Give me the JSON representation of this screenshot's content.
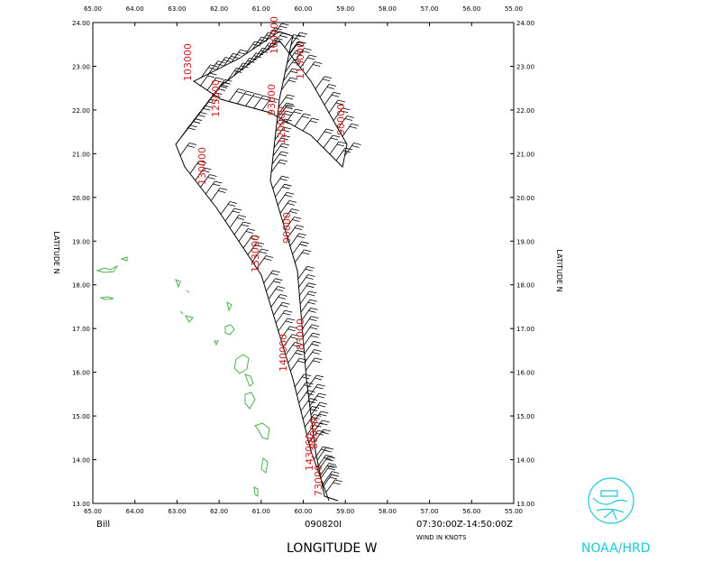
{
  "plot": {
    "xlim": [
      65,
      55
    ],
    "ylim": [
      13,
      24
    ],
    "xticks": [
      {
        "value": 65,
        "label": "65.00"
      },
      {
        "value": 64,
        "label": "64.00"
      },
      {
        "value": 63,
        "label": "63.00"
      },
      {
        "value": 62,
        "label": "62.00"
      },
      {
        "value": 61,
        "label": "61.00"
      },
      {
        "value": 60,
        "label": "60.00"
      },
      {
        "value": 59,
        "label": "59.00"
      },
      {
        "value": 58,
        "label": "58.00"
      },
      {
        "value": 57,
        "label": "57.00"
      },
      {
        "value": 56,
        "label": "56.00"
      },
      {
        "value": 55,
        "label": "55.00"
      }
    ],
    "yticks": [
      {
        "value": 13,
        "label": "13.00"
      },
      {
        "value": 14,
        "label": "14.00"
      },
      {
        "value": 15,
        "label": "15.00"
      },
      {
        "value": 16,
        "label": "16.00"
      },
      {
        "value": 17,
        "label": "17.00"
      },
      {
        "value": 18,
        "label": "18.00"
      },
      {
        "value": 19,
        "label": "19.00"
      },
      {
        "value": 20,
        "label": "20.00"
      },
      {
        "value": 21,
        "label": "21.00"
      },
      {
        "value": 22,
        "label": "22.00"
      },
      {
        "value": 23,
        "label": "23.00"
      },
      {
        "value": 24,
        "label": "24.00"
      }
    ],
    "xlabel": "LONGITUDE   W",
    "ylabel": "LATITUDE   N",
    "storm": "Bill",
    "flight": "090820I",
    "time_range": "07:30:00Z-14:50:00Z",
    "units": "WIND IN KNOTS",
    "time_labels": [
      "103000",
      "123000",
      "100000",
      "113000",
      "93000",
      "120000",
      "90000",
      "130000",
      "90000",
      "133000",
      "83000",
      "140000",
      "80000",
      "143000",
      "73000"
    ],
    "logo": "NOAA/HRD"
  }
}
